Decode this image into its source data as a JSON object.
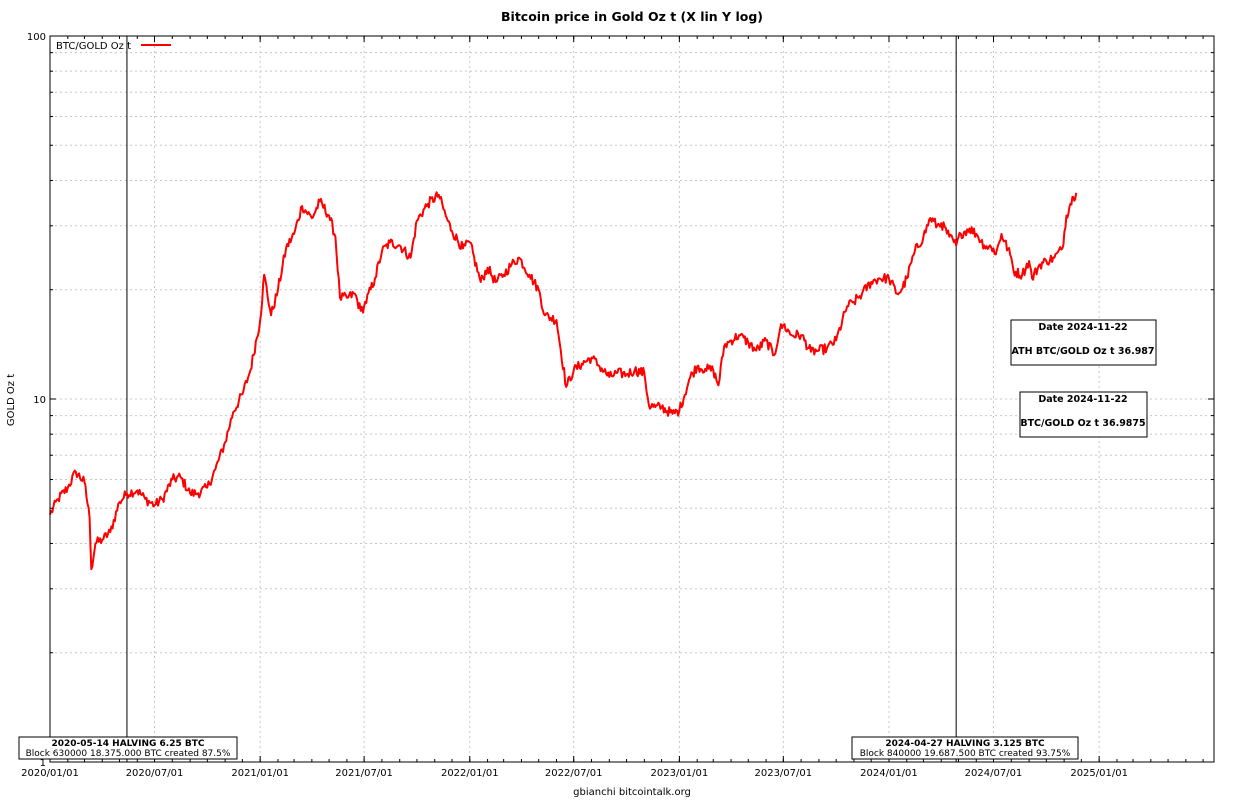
{
  "chart_data": {
    "type": "line",
    "title": "Bitcoin price in Gold Oz t (X lin Y log)",
    "ylabel": "GOLD Oz t",
    "footer": "gbianchi bitcointalk.org",
    "y_scale": "log",
    "ylim": [
      1,
      100
    ],
    "xlim": [
      "2020-01-01",
      "2025-07-20"
    ],
    "y_ticks": [
      1,
      10,
      100
    ],
    "x_ticks": [
      "2020/01/01",
      "2020/07/01",
      "2021/01/01",
      "2021/07/01",
      "2022/01/01",
      "2022/07/01",
      "2023/01/01",
      "2023/07/01",
      "2024/01/01",
      "2024/07/01",
      "2025/01/01"
    ],
    "grid": true,
    "legend_position": "top-left",
    "colors": {
      "series": "#ff0000"
    },
    "series": [
      {
        "name": "BTC/GOLD Oz t",
        "x": [
          "2020-01-01",
          "2020-01-15",
          "2020-02-01",
          "2020-02-15",
          "2020-03-01",
          "2020-03-10",
          "2020-03-13",
          "2020-03-20",
          "2020-04-01",
          "2020-04-15",
          "2020-05-01",
          "2020-05-14",
          "2020-06-01",
          "2020-06-15",
          "2020-07-01",
          "2020-07-15",
          "2020-08-01",
          "2020-08-15",
          "2020-09-01",
          "2020-09-15",
          "2020-10-01",
          "2020-10-15",
          "2020-11-01",
          "2020-11-15",
          "2020-12-01",
          "2020-12-15",
          "2021-01-01",
          "2021-01-08",
          "2021-01-20",
          "2021-02-01",
          "2021-02-15",
          "2021-03-01",
          "2021-03-15",
          "2021-04-01",
          "2021-04-15",
          "2021-05-01",
          "2021-05-12",
          "2021-05-20",
          "2021-06-01",
          "2021-06-15",
          "2021-06-25",
          "2021-07-01",
          "2021-07-20",
          "2021-08-01",
          "2021-08-15",
          "2021-09-01",
          "2021-09-20",
          "2021-10-01",
          "2021-10-20",
          "2021-11-08",
          "2021-11-20",
          "2021-12-01",
          "2021-12-20",
          "2022-01-01",
          "2022-01-20",
          "2022-02-01",
          "2022-02-15",
          "2022-03-01",
          "2022-03-15",
          "2022-03-28",
          "2022-04-15",
          "2022-05-01",
          "2022-05-12",
          "2022-06-01",
          "2022-06-18",
          "2022-07-01",
          "2022-07-15",
          "2022-08-01",
          "2022-08-15",
          "2022-09-01",
          "2022-09-15",
          "2022-10-01",
          "2022-10-15",
          "2022-11-01",
          "2022-11-09",
          "2022-11-20",
          "2022-12-01",
          "2022-12-20",
          "2023-01-01",
          "2023-01-20",
          "2023-02-01",
          "2023-02-15",
          "2023-03-01",
          "2023-03-10",
          "2023-03-20",
          "2023-04-01",
          "2023-04-15",
          "2023-05-01",
          "2023-05-15",
          "2023-06-01",
          "2023-06-15",
          "2023-06-25",
          "2023-07-01",
          "2023-07-15",
          "2023-08-01",
          "2023-08-18",
          "2023-09-01",
          "2023-09-15",
          "2023-10-01",
          "2023-10-20",
          "2023-11-01",
          "2023-11-15",
          "2023-12-01",
          "2023-12-15",
          "2024-01-01",
          "2024-01-15",
          "2024-01-23",
          "2024-02-01",
          "2024-02-15",
          "2024-03-01",
          "2024-03-13",
          "2024-03-25",
          "2024-04-01",
          "2024-04-15",
          "2024-04-27",
          "2024-05-05",
          "2024-05-20",
          "2024-06-01",
          "2024-06-15",
          "2024-07-01",
          "2024-07-05",
          "2024-07-15",
          "2024-08-01",
          "2024-08-05",
          "2024-08-20",
          "2024-09-01",
          "2024-09-06",
          "2024-09-20",
          "2024-10-01",
          "2024-10-15",
          "2024-10-29",
          "2024-11-05",
          "2024-11-12",
          "2024-11-17",
          "2024-11-22"
        ],
        "values": [
          4.8,
          5.3,
          5.7,
          6.3,
          5.9,
          4.7,
          3.4,
          4.0,
          4.1,
          4.3,
          5.2,
          5.5,
          5.6,
          5.3,
          5.1,
          5.3,
          6.0,
          6.1,
          5.5,
          5.5,
          5.7,
          6.4,
          7.6,
          9.2,
          10.3,
          12.0,
          16.5,
          22.0,
          17.0,
          20.0,
          26.0,
          28.5,
          34.0,
          31.5,
          35.0,
          32.0,
          28.0,
          19.0,
          19.0,
          19.5,
          17.5,
          18.0,
          21.5,
          25.5,
          27.0,
          26.5,
          24.5,
          31.0,
          34.5,
          36.5,
          32.0,
          29.0,
          26.0,
          27.0,
          21.0,
          23.0,
          21.0,
          22.0,
          23.5,
          24.5,
          22.0,
          20.0,
          17.0,
          16.5,
          10.8,
          12.0,
          12.5,
          13.0,
          12.3,
          11.5,
          11.8,
          11.7,
          12.0,
          11.8,
          9.6,
          9.5,
          9.5,
          9.1,
          9.3,
          11.5,
          12.3,
          12.1,
          12.0,
          10.9,
          14.0,
          14.5,
          15.0,
          14.3,
          13.6,
          14.5,
          13.2,
          15.5,
          16.0,
          15.0,
          15.0,
          13.5,
          13.6,
          13.8,
          14.5,
          18.0,
          18.5,
          19.5,
          21.0,
          21.5,
          21.5,
          19.5,
          20.0,
          21.5,
          25.5,
          28.0,
          31.5,
          30.0,
          30.5,
          28.0,
          26.5,
          28.5,
          29.5,
          28.5,
          26.5,
          26.0,
          25.0,
          28.5,
          24.5,
          22.5,
          22.0,
          24.0,
          21.5,
          23.5,
          24.0,
          24.5,
          26.0,
          32.0,
          34.5,
          36.0,
          36.99
        ]
      }
    ],
    "annotations": [
      {
        "date": "2020-05-14",
        "label_line1": "2020-05-14 HALVING 6.25 BTC",
        "label_line2": "Block 630000 18.375.000 BTC created 87.5%"
      },
      {
        "date": "2024-04-27",
        "label_line1": "2024-04-27 HALVING 3.125 BTC",
        "label_line2": "Block 840000 19.687.500 BTC created 93.75%"
      }
    ],
    "info_boxes": [
      {
        "line1": "Date 2024-11-22",
        "line2": "ATH BTC/GOLD Oz t 36.987"
      },
      {
        "line1": "Date 2024-11-22",
        "line2": "BTC/GOLD Oz t 36.9875"
      }
    ]
  }
}
